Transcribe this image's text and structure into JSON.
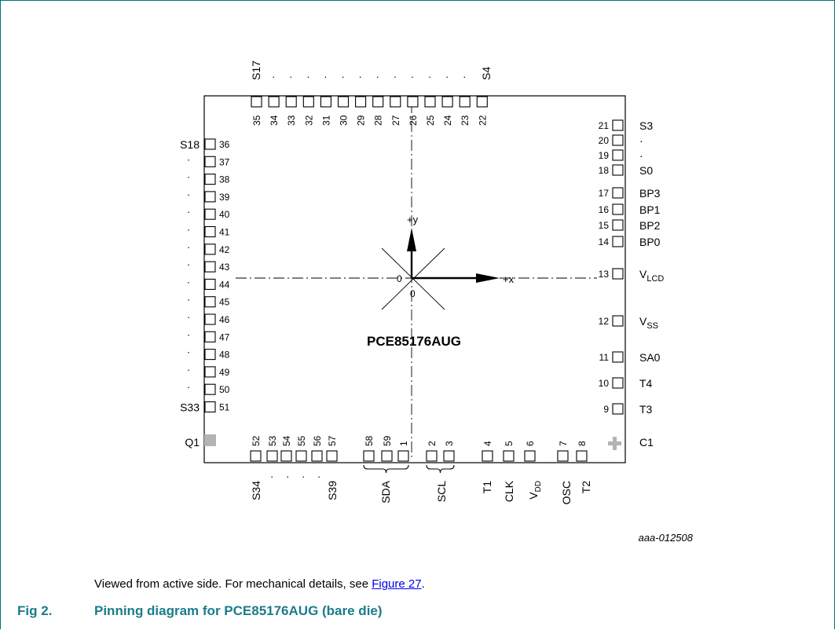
{
  "diagram": {
    "chip_name": "PCE85176AUG",
    "axis_x_label": "+x",
    "axis_y_label": "+y",
    "origin_x_label": "0",
    "origin_y_label": "0",
    "doc_id": "aaa-012508",
    "top_pads": [
      "35",
      "34",
      "33",
      "32",
      "31",
      "30",
      "29",
      "28",
      "27",
      "26",
      "25",
      "24",
      "23",
      "22"
    ],
    "top_label_left": "S17",
    "top_label_right": "S4",
    "left_pads": [
      "36",
      "37",
      "38",
      "39",
      "40",
      "41",
      "42",
      "43",
      "44",
      "45",
      "46",
      "47",
      "48",
      "49",
      "50",
      "51"
    ],
    "left_label_top": "S18",
    "left_label_bottom": "S33",
    "left_corner_label": "Q1",
    "right_pads": [
      {
        "num": "21",
        "label": "S3"
      },
      {
        "num": "20",
        "label": "·"
      },
      {
        "num": "19",
        "label": "·"
      },
      {
        "num": "18",
        "label": "S0"
      },
      {
        "num": "17",
        "label": "BP3"
      },
      {
        "num": "16",
        "label": "BP1"
      },
      {
        "num": "15",
        "label": "BP2"
      },
      {
        "num": "14",
        "label": "BP0"
      },
      {
        "num": "13",
        "label": "V",
        "sub": "LCD"
      },
      {
        "num": "12",
        "label": "V",
        "sub": "SS"
      },
      {
        "num": "11",
        "label": "SA0"
      },
      {
        "num": "10",
        "label": "T4"
      },
      {
        "num": "9",
        "label": "T3"
      }
    ],
    "right_corner_label": "C1",
    "bottom_pads": [
      "52",
      "53",
      "54",
      "55",
      "56",
      "57",
      "58",
      "59",
      "1",
      "2",
      "3",
      "4",
      "5",
      "6",
      "7",
      "8"
    ],
    "bottom_labels": [
      {
        "text": "S34"
      },
      {
        "text": "S39"
      },
      {
        "text": "SDA"
      },
      {
        "text": "SCL"
      },
      {
        "text": "T1"
      },
      {
        "text": "CLK"
      },
      {
        "text": "V",
        "sub": "DD"
      },
      {
        "text": "OSC"
      },
      {
        "text": "T2"
      }
    ]
  },
  "caption": {
    "text": "Viewed from active side. For mechanical details, see ",
    "link": "Figure 27",
    "end": "."
  },
  "figure": {
    "number": "Fig 2.",
    "title": "Pinning diagram for PCE85176AUG (bare die)"
  },
  "colors": {
    "frame": "#00727b",
    "figure_title": "#1b7c8a",
    "link": "#0000ee",
    "marker": "#b3b3b3"
  }
}
